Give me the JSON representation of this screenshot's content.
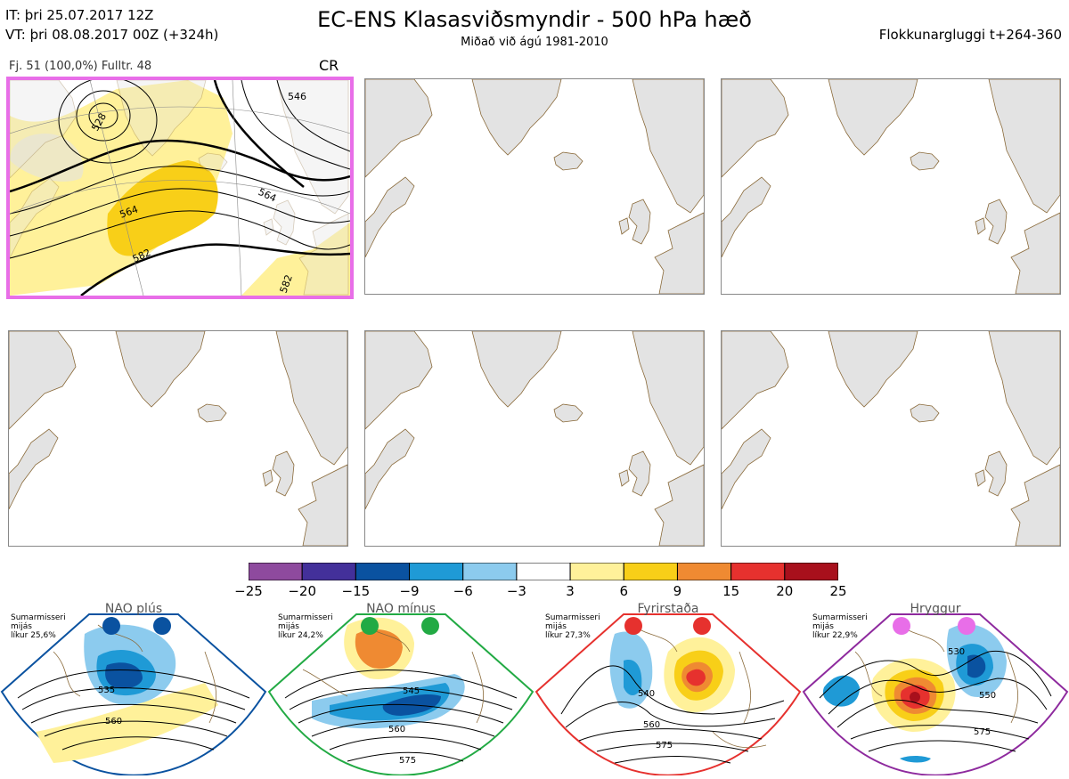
{
  "header": {
    "it_line": "IT: þri 25.07.2017 12Z",
    "vt_line": "VT: þri 08.08.2017 00Z  (+324h)",
    "title": "EC-ENS Klasasviðsmyndir - 500 hPa hæð",
    "subtitle": "Miðað við ágú 1981-2010",
    "window": "Flokkunargluggi t+264-360"
  },
  "main_panel": {
    "info": "Fj. 51 (100,0%)   Fulltr. 48",
    "regime_code": "CR",
    "contour_labels": [
      "546",
      "564",
      "564",
      "582",
      "582",
      "528"
    ]
  },
  "colorbar": {
    "ticks": [
      "−25",
      "−20",
      "−15",
      "−9",
      "−6",
      "−3",
      "3",
      "6",
      "9",
      "15",
      "20",
      "25"
    ],
    "colors": [
      "#8e4a9e",
      "#43309a",
      "#0a52a0",
      "#1f9ad6",
      "#8ccbee",
      "#ffffff",
      "#fff19a",
      "#f8cf18",
      "#ef8a32",
      "#e6312e",
      "#a8101c"
    ]
  },
  "regimes": [
    {
      "name": "NAO plús",
      "season": "Sumarmisseri",
      "m1": "mijás",
      "prob": "líkur 25,6%",
      "color": "#0a52a0",
      "labels": [
        "535",
        "560"
      ]
    },
    {
      "name": "NAO mínus",
      "season": "Sumarmisseri",
      "m1": "mijás",
      "prob": "líkur 24,2%",
      "color": "#22aa44",
      "labels": [
        "545",
        "560",
        "575"
      ]
    },
    {
      "name": "Fyrirstaða",
      "season": "Sumarmisseri",
      "m1": "mijás",
      "prob": "líkur 27,3%",
      "color": "#e6312e",
      "labels": [
        "540",
        "560",
        "575"
      ]
    },
    {
      "name": "Hryggur",
      "season": "Sumarmisseri",
      "m1": "mijás",
      "prob": "líkur 22,9%",
      "color": "#e86ee8",
      "labels": [
        "530",
        "550",
        "575"
      ]
    }
  ]
}
